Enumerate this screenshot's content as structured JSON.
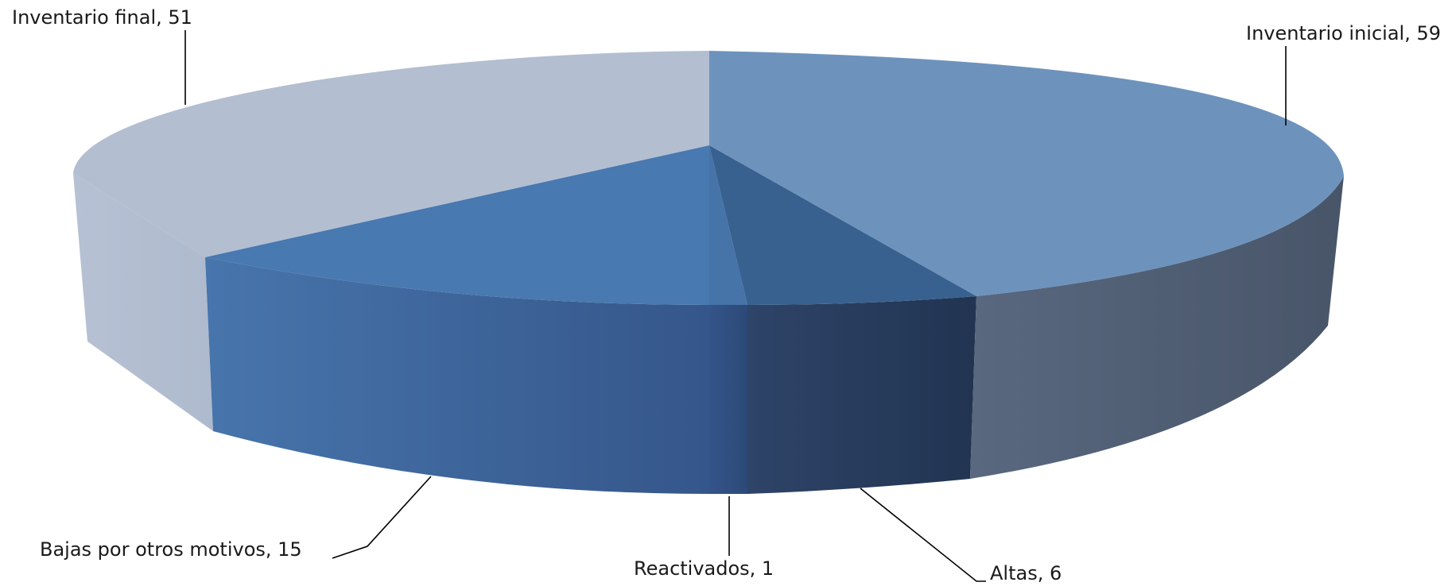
{
  "chart_data": {
    "type": "pie",
    "style": "3d",
    "slices": [
      {
        "label": "Inventario inicial",
        "value": 59,
        "display": "Inventario inicial, 59",
        "color": "#6d93bd",
        "side": "#4b5b73"
      },
      {
        "label": "Altas",
        "value": 6,
        "display": "Altas, 6",
        "color": "#38618f",
        "side": "#26395a"
      },
      {
        "label": "Reactivados",
        "value": 1,
        "display": "Reactivados, 1",
        "color": "#4673a8",
        "side": "#31507c"
      },
      {
        "label": "Bajas por otros motivos",
        "value": 15,
        "display": "Bajas por otros motivos, 15",
        "color": "#4879b0",
        "side": "#3e5f8f"
      },
      {
        "label": "Inventario final",
        "value": 51,
        "display": "Inventario final, 51",
        "color": "#b4bed1",
        "side": "#b6c1d3"
      }
    ]
  }
}
